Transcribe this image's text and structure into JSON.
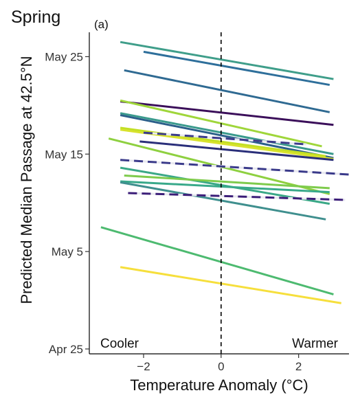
{
  "chart_data": {
    "type": "line",
    "title": "Spring",
    "panel_label": "(a)",
    "xlabel": "Temperature Anomaly (°C)",
    "ylabel": "Predicted Median Passage at 42.5°N",
    "x_ticks": [
      -2,
      0,
      2
    ],
    "x_tick_labels": [
      "−2",
      "0",
      "2"
    ],
    "xlim": [
      -3.4,
      3.3
    ],
    "y_ticks": [
      115,
      125,
      135,
      145
    ],
    "y_tick_labels": [
      "Apr 25",
      "May 5",
      "May 15",
      "May 25"
    ],
    "ylim": [
      114.5,
      147.5
    ],
    "reference_line_x": 0,
    "grid": false,
    "annotations": {
      "left": "Cooler",
      "right": "Warmer"
    },
    "series": [
      {
        "color": "#3f9e8a",
        "dashed": false,
        "x": [
          -2.6,
          2.9
        ],
        "y": [
          146.5,
          142.7
        ]
      },
      {
        "color": "#2e6f9b",
        "dashed": false,
        "x": [
          -2.0,
          2.8
        ],
        "y": [
          145.5,
          142.1
        ]
      },
      {
        "color": "#2f6a92",
        "dashed": false,
        "x": [
          -2.5,
          2.8
        ],
        "y": [
          143.6,
          139.3
        ]
      },
      {
        "color": "#3b0f5a",
        "dashed": false,
        "x": [
          -2.6,
          2.9
        ],
        "y": [
          140.4,
          138.0
        ]
      },
      {
        "color": "#3a9a8c",
        "dashed": false,
        "x": [
          -2.6,
          2.9
        ],
        "y": [
          139.2,
          135.0
        ]
      },
      {
        "color": "#9fd63a",
        "dashed": false,
        "x": [
          -2.6,
          2.6
        ],
        "y": [
          140.5,
          135.8
        ]
      },
      {
        "color": "#2b5f8a",
        "dashed": false,
        "x": [
          -2.6,
          2.9
        ],
        "y": [
          139.0,
          134.6
        ]
      },
      {
        "color": "#c2df24",
        "dashed": false,
        "x": [
          -2.6,
          2.7
        ],
        "y": [
          137.7,
          134.8
        ]
      },
      {
        "color": "#d8e22d",
        "dashed": false,
        "x": [
          -2.6,
          2.9
        ],
        "y": [
          137.5,
          134.5
        ]
      },
      {
        "color": "#3b3b8a",
        "dashed": true,
        "x": [
          -2.0,
          2.2
        ],
        "y": [
          137.2,
          136.0
        ]
      },
      {
        "color": "#2a2f7a",
        "dashed": false,
        "x": [
          -2.1,
          2.9
        ],
        "y": [
          136.3,
          134.4
        ]
      },
      {
        "color": "#8ed040",
        "dashed": false,
        "x": [
          -2.9,
          2.8
        ],
        "y": [
          136.6,
          130.9
        ]
      },
      {
        "color": "#3a3a8a",
        "dashed": true,
        "x": [
          -2.6,
          3.3
        ],
        "y": [
          134.4,
          132.9
        ]
      },
      {
        "color": "#3aa887",
        "dashed": false,
        "x": [
          -2.6,
          2.8
        ],
        "y": [
          133.6,
          129.9
        ]
      },
      {
        "color": "#38a98a",
        "dashed": false,
        "x": [
          -2.6,
          2.8
        ],
        "y": [
          132.2,
          131.1
        ]
      },
      {
        "color": "#7ecb4c",
        "dashed": false,
        "x": [
          -2.5,
          2.8
        ],
        "y": [
          132.8,
          131.5
        ]
      },
      {
        "color": "#3f8f8e",
        "dashed": false,
        "x": [
          -2.6,
          2.7
        ],
        "y": [
          132.1,
          128.3
        ]
      },
      {
        "color": "#3b1d78",
        "dashed": true,
        "x": [
          -2.4,
          3.2
        ],
        "y": [
          131.0,
          130.3
        ]
      },
      {
        "color": "#4dba70",
        "dashed": false,
        "x": [
          -3.1,
          2.9
        ],
        "y": [
          127.5,
          120.6
        ]
      },
      {
        "color": "#f6df3c",
        "dashed": false,
        "x": [
          -2.6,
          3.1
        ],
        "y": [
          123.4,
          119.7
        ]
      }
    ]
  }
}
